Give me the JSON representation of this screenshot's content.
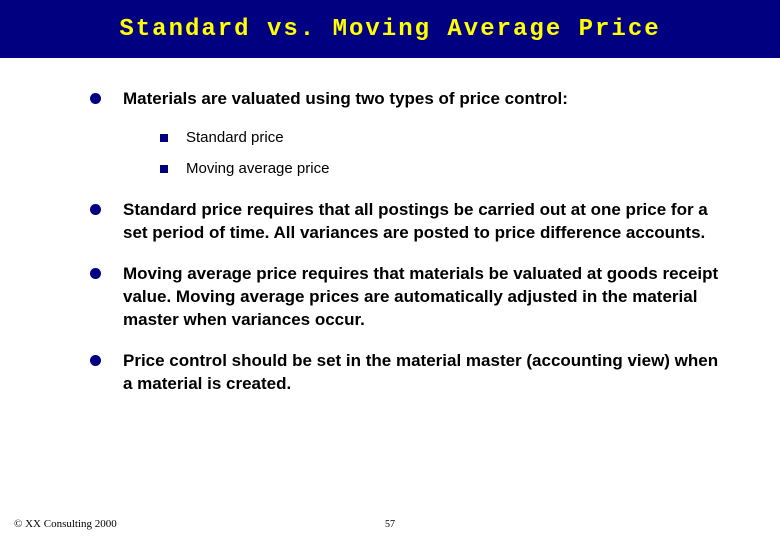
{
  "title": "Standard vs. Moving Average Price",
  "bullets": [
    {
      "text": "Materials are valuated using two types of price control:"
    },
    {
      "text": "Standard price requires that all postings be carried out at one price for a set period of time.  All variances are posted to price difference accounts."
    },
    {
      "text": "Moving average price requires that materials be valuated at goods receipt value.  Moving average prices are automatically adjusted in the material master when variances occur."
    },
    {
      "text": "Price control should be set in the material master (accounting view) when a material is created."
    }
  ],
  "sub_bullets": [
    {
      "text": "Standard price"
    },
    {
      "text": "Moving average price"
    }
  ],
  "footer": {
    "copyright": "© XX Consulting 2000",
    "page": "57"
  },
  "colors": {
    "title_bg": "#000080",
    "title_fg": "#ffff00",
    "bullet_marker": "#000080",
    "body_text": "#000000",
    "page_bg": "#ffffff"
  }
}
